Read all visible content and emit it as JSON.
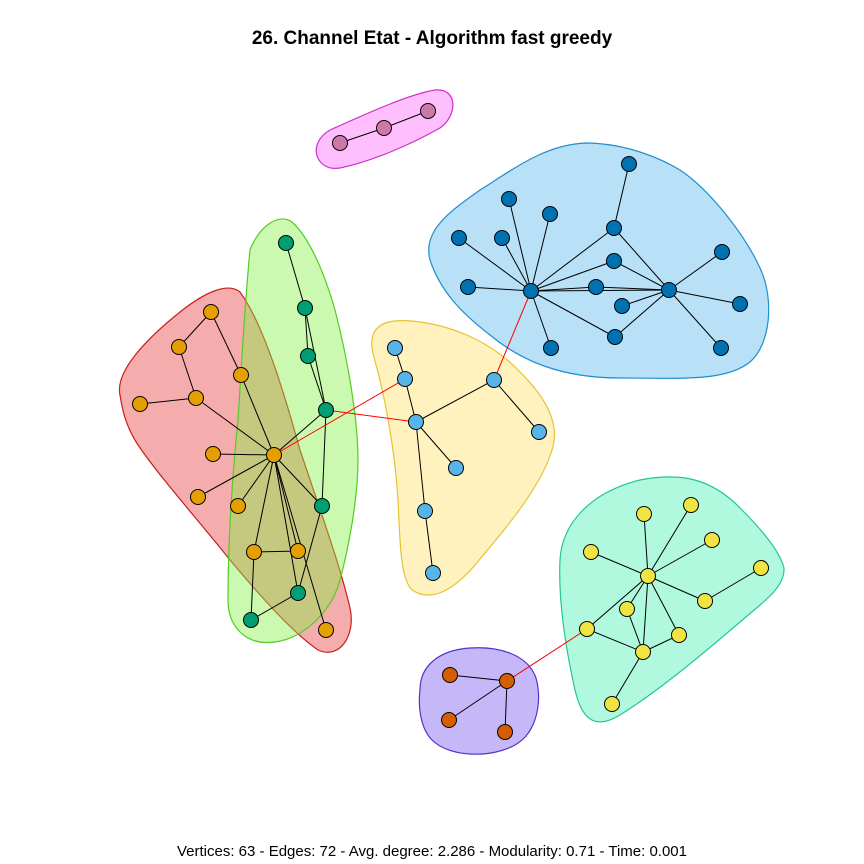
{
  "title": "26. Channel Etat - Algorithm fast greedy",
  "stats_text": "Vertices: 63 - Edges: 72 - Avg. degree: 2.286 - Modularity: 0.71 - Time: 0.001",
  "colors": {
    "node_stroke": "#000000",
    "intra_edge": "#000000",
    "inter_edge": "#ff0000"
  },
  "communities": [
    {
      "name": "pink",
      "fill": "#ff66ff",
      "stroke": "#cc33cc",
      "node_fill": "#cc79a7"
    },
    {
      "name": "blue",
      "fill": "#56b4e9",
      "stroke": "#1f8fcf",
      "node_fill": "#0072b2"
    },
    {
      "name": "red",
      "fill": "#e83a3a",
      "stroke": "#c81e1e",
      "node_fill": "#e69f00"
    },
    {
      "name": "green",
      "fill": "#80f040",
      "stroke": "#55cc22",
      "node_fill": "#009e73"
    },
    {
      "name": "yellow",
      "fill": "#ffe066",
      "stroke": "#e6c233",
      "node_fill": "#56b4e9"
    },
    {
      "name": "teal",
      "fill": "#44f0b0",
      "stroke": "#22c890",
      "node_fill": "#f0e442"
    },
    {
      "name": "purple",
      "fill": "#7755ee",
      "stroke": "#5533cc",
      "node_fill": "#d55e00"
    }
  ]
}
